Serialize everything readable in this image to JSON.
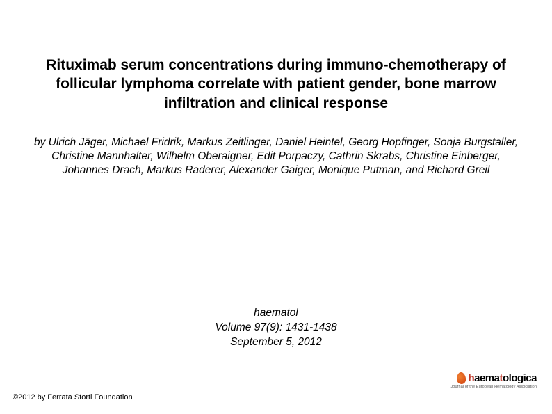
{
  "title": "Rituximab serum concentrations during immuno-chemotherapy of follicular lymphoma correlate with patient gender, bone marrow infiltration and clinical response",
  "authors": "by Ulrich Jäger, Michael Fridrik, Markus Zeitlinger, Daniel Heintel, Georg Hopfinger, Sonja Burgstaller, Christine Mannhalter, Wilhelm Oberaigner, Edit Porpaczy, Cathrin Skrabs, Christine Einberger, Johannes Drach, Markus Raderer, Alexander Gaiger, Monique Putman, and Richard Greil",
  "citation": {
    "journal": "haematol",
    "volume_issue": "Volume 97(9): 1431-1438",
    "date": "September 5, 2012"
  },
  "copyright": "©2012 by Ferrata Storti Foundation",
  "logo": {
    "word1_part1": "h",
    "word1_part2": "aema",
    "word1_part3": "t",
    "word1_part4": "ologica",
    "tagline": "Journal of the European Hematology Association",
    "drop_color": "#d04010",
    "accent_color": "#c0392b",
    "text_color": "#000000"
  },
  "colors": {
    "background": "#ffffff",
    "text": "#000000"
  },
  "typography": {
    "title_fontsize": 21,
    "title_weight": "bold",
    "authors_fontsize": 15.5,
    "authors_style": "italic",
    "citation_fontsize": 15.5,
    "citation_style": "italic",
    "copyright_fontsize": 11
  }
}
